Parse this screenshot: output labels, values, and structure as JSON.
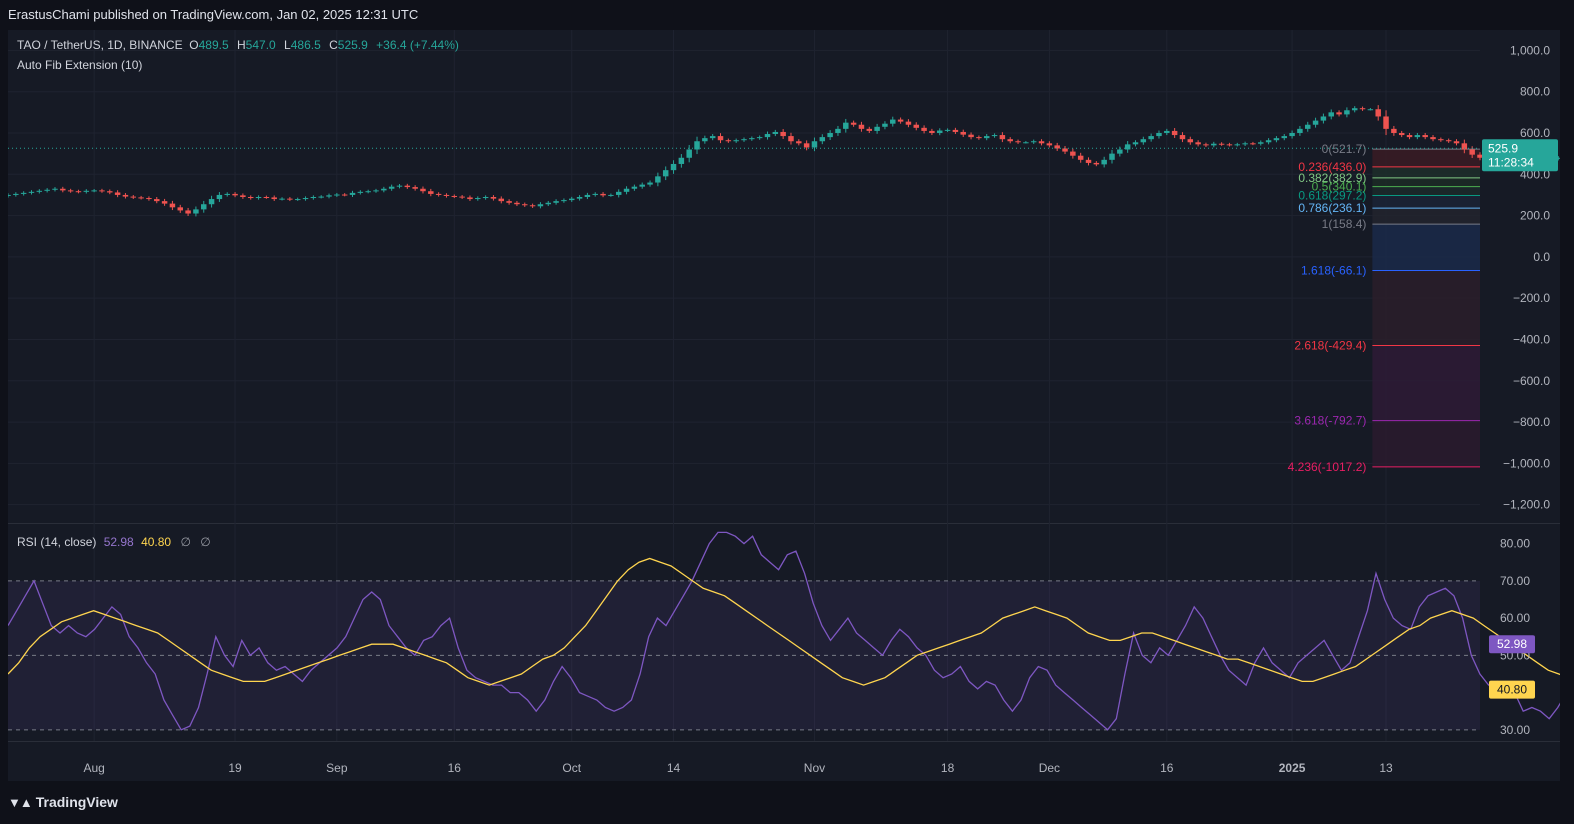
{
  "header": {
    "publisher": "ErastusChami published on TradingView.com, Jan 02, 2025 12:31 UTC"
  },
  "legend": {
    "symbol": "TAO / TetherUS, 1D, BINANCE",
    "open": "489.5",
    "high": "547.0",
    "low": "486.5",
    "close": "525.9",
    "change": "+36.4 (+7.44%)",
    "indicator": "Auto Fib Extension (10)"
  },
  "rsi_legend": {
    "label": "RSI (14, close)",
    "rsi": "52.98",
    "ma": "40.80",
    "na1": "∅",
    "na2": "∅"
  },
  "footer": {
    "brand": "TradingView",
    "logo": "tradingview-logo-icon"
  },
  "colors": {
    "up": "#26a69a",
    "down": "#ef5350",
    "rsi": "#7e57c2",
    "rsi_ma": "#ffd54f",
    "background": "#161a25",
    "price_badge": "#26a69a"
  },
  "chart_data": [
    {
      "type": "candlestick",
      "title": "",
      "x_ticks": [
        "Aug",
        "19",
        "Sep",
        "16",
        "Oct",
        "14",
        "Nov",
        "18",
        "Dec",
        "16",
        "2025",
        "13"
      ],
      "x_tick_dates": [
        "2024-08-01",
        "2024-08-19",
        "2024-09-01",
        "2024-09-16",
        "2024-10-01",
        "2024-10-14",
        "2024-11-01",
        "2024-11-18",
        "2024-12-01",
        "2024-12-16",
        "2025-01-01",
        "2025-01-13"
      ],
      "y_ticks": [
        "1,000.0",
        "800.0",
        "600.0",
        "400.0",
        "200.0",
        "0.0",
        "−200.0",
        "−400.0",
        "−600.0",
        "−800.0",
        "−1,000.0",
        "−1,200.0"
      ],
      "y_tick_values": [
        1000,
        800,
        600,
        400,
        200,
        0,
        -200,
        -400,
        -600,
        -800,
        -1000,
        -1200
      ],
      "ylim": [
        -1250,
        1060
      ],
      "close_series": {
        "start_date": "2024-07-21",
        "values": [
          300,
          305,
          310,
          315,
          320,
          325,
          330,
          322,
          318,
          315,
          320,
          322,
          318,
          312,
          300,
          292,
          288,
          285,
          280,
          270,
          258,
          240,
          225,
          210,
          230,
          255,
          280,
          300,
          305,
          298,
          290,
          285,
          290,
          288,
          280,
          282,
          278,
          280,
          285,
          290,
          292,
          298,
          302,
          300,
          310,
          315,
          318,
          322,
          330,
          340,
          345,
          338,
          330,
          318,
          305,
          300,
          295,
          292,
          288,
          280,
          285,
          290,
          282,
          270,
          262,
          255,
          250,
          245,
          255,
          262,
          270,
          275,
          282,
          290,
          300,
          305,
          298,
          300,
          315,
          330,
          340,
          350,
          360,
          390,
          420,
          450,
          480,
          520,
          560,
          575,
          585,
          565,
          560,
          565,
          570,
          575,
          580,
          595,
          605,
          585,
          560,
          550,
          530,
          560,
          580,
          600,
          620,
          650,
          640,
          620,
          610,
          630,
          645,
          665,
          655,
          640,
          625,
          610,
          600,
          612,
          615,
          605,
          592,
          580,
          575,
          585,
          590,
          570,
          560,
          555,
          555,
          560,
          550,
          540,
          525,
          510,
          490,
          470,
          455,
          448,
          470,
          500,
          520,
          545,
          555,
          570,
          585,
          600,
          610,
          590,
          570,
          555,
          545,
          540,
          548,
          545,
          542,
          545,
          550,
          548,
          555,
          565,
          575,
          585,
          600,
          620,
          640,
          660,
          680,
          700,
          690,
          710,
          720,
          715
        ],
        "fib_window_start_date": "2025-01-03"
      },
      "fib_zone_post": [
        715,
        680,
        620,
        600,
        590,
        580,
        590,
        580,
        570,
        565,
        560,
        550,
        520,
        495,
        480,
        470,
        475,
        480,
        490,
        495,
        490,
        480,
        470,
        475,
        480,
        485,
        490,
        482,
        475,
        468,
        465,
        470,
        475,
        480,
        489.5,
        525.9
      ],
      "last_price": "525.9",
      "countdown": "11:28:34",
      "fib_levels": [
        {
          "label": "0(521.7)",
          "value": 521.7,
          "color": "#787b86"
        },
        {
          "label": "0.236(436.0)",
          "value": 436.0,
          "color": "#f23645"
        },
        {
          "label": "0.382(382.9)",
          "value": 382.9,
          "color": "#81c784"
        },
        {
          "label": "0.5(340.1)",
          "value": 340.1,
          "color": "#4caf50"
        },
        {
          "label": "0.618(297.2)",
          "value": 297.2,
          "color": "#089981"
        },
        {
          "label": "0.786(236.1)",
          "value": 236.1,
          "color": "#64b5f6"
        },
        {
          "label": "1(158.4)",
          "value": 158.4,
          "color": "#787b86"
        },
        {
          "label": "1.618(-66.1)",
          "value": -66.1,
          "color": "#2962ff"
        },
        {
          "label": "2.618(-429.4)",
          "value": -429.4,
          "color": "#f23645"
        },
        {
          "label": "3.618(-792.7)",
          "value": -792.7,
          "color": "#9c27b0"
        },
        {
          "label": "4.236(-1017.2)",
          "value": -1017.2,
          "color": "#e91e63"
        }
      ]
    },
    {
      "type": "line",
      "title": "",
      "y_ticks": [
        "80.00",
        "70.00",
        "60.00",
        "50.00",
        "30.00"
      ],
      "y_tick_values": [
        80,
        70,
        60,
        50,
        30
      ],
      "ylim": [
        27,
        85
      ],
      "bands": {
        "upper": 70,
        "middle": 50,
        "lower": 30
      },
      "rsi_series": {
        "values": [
          58,
          62,
          66,
          70,
          64,
          58,
          56,
          58,
          56,
          55,
          57,
          60,
          63,
          61,
          55,
          52,
          48,
          45,
          38,
          34,
          30,
          31,
          36,
          45,
          55,
          50,
          47,
          54,
          50,
          52,
          48,
          46,
          47,
          45,
          43,
          46,
          48,
          50,
          52,
          55,
          60,
          65,
          67,
          65,
          58,
          55,
          52,
          50,
          54,
          55,
          58,
          60,
          52,
          46,
          44,
          43,
          42,
          42,
          40,
          40,
          38,
          35,
          38,
          43,
          47,
          44,
          40,
          39,
          38,
          36,
          35,
          36,
          38,
          45,
          55,
          60,
          58,
          62,
          66,
          70,
          75,
          80,
          83,
          83,
          82,
          80,
          82,
          77,
          75,
          73,
          77,
          78,
          72,
          64,
          58,
          54,
          57,
          60,
          56,
          54,
          52,
          50,
          54,
          57,
          55,
          52,
          50,
          46,
          44,
          45,
          47,
          43,
          41,
          43,
          42,
          38,
          35,
          38,
          44,
          47,
          46,
          42,
          40,
          38,
          36,
          34,
          32,
          30,
          33,
          45,
          56,
          50,
          48,
          52,
          50,
          54,
          58,
          63,
          60,
          55,
          50,
          46,
          44,
          42,
          48,
          52,
          48,
          46,
          44,
          48,
          50,
          52,
          54,
          50,
          46,
          48,
          55,
          62,
          72,
          65,
          60,
          58,
          57,
          63,
          66,
          67,
          68,
          66,
          60,
          50,
          45,
          42,
          43,
          40,
          40,
          35,
          36,
          35,
          33,
          36,
          40,
          44,
          46,
          45,
          42,
          40,
          38,
          36,
          45,
          52.98
        ]
      },
      "ma_series": {
        "values": [
          45,
          48,
          52,
          55,
          57,
          59,
          60,
          61,
          62,
          61,
          60,
          59,
          58,
          57,
          56,
          54,
          52,
          50,
          48,
          46,
          45,
          44,
          43,
          43,
          43,
          44,
          45,
          46,
          47,
          48,
          49,
          50,
          51,
          52,
          53,
          53,
          53,
          52,
          51,
          50,
          49,
          48,
          46,
          44,
          43,
          42,
          43,
          44,
          45,
          47,
          49,
          50,
          52,
          55,
          58,
          62,
          66,
          70,
          73,
          75,
          76,
          75,
          74,
          72,
          70,
          68,
          67,
          66,
          64,
          62,
          60,
          58,
          56,
          54,
          52,
          50,
          48,
          46,
          44,
          43,
          42,
          43,
          44,
          46,
          48,
          50,
          51,
          52,
          53,
          54,
          55,
          56,
          58,
          60,
          61,
          62,
          63,
          62,
          61,
          60,
          58,
          56,
          55,
          54,
          54,
          55,
          56,
          56,
          55,
          54,
          53,
          52,
          51,
          50,
          49,
          49,
          48,
          47,
          46,
          45,
          44,
          43,
          43,
          44,
          45,
          46,
          47,
          49,
          51,
          53,
          55,
          57,
          58,
          60,
          61,
          62,
          61,
          60,
          58,
          56,
          54,
          52,
          50,
          48,
          46,
          45,
          44,
          43,
          42,
          41,
          40,
          40,
          40,
          40.8
        ]
      },
      "rsi_label": "52.98",
      "ma_label": "40.80"
    }
  ]
}
